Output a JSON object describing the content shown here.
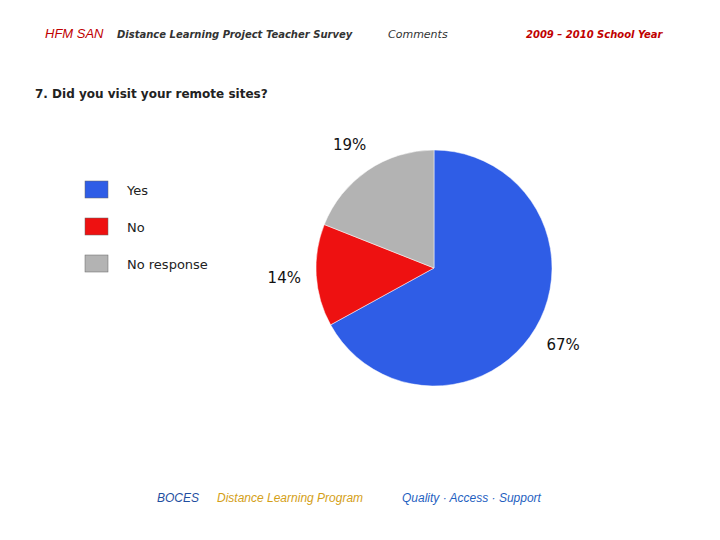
{
  "header": {
    "brand": "HFM SAN",
    "project": "Distance Learning Project  Teacher Survey",
    "section": "Comments",
    "year": "2009 – 2010 School Year"
  },
  "chart_data": {
    "type": "pie",
    "title": "7. Did you visit your remote sites?",
    "categories": [
      "Yes",
      "No",
      "No response"
    ],
    "values": [
      67,
      14,
      19
    ],
    "value_labels": [
      "67%",
      "14%",
      "19%"
    ],
    "colors": [
      "#2f5de6",
      "#ee1111",
      "#b3b3b3"
    ],
    "data_labels": true,
    "legend": "left"
  },
  "footer": {
    "org": "BOCES",
    "program": "Distance Learning Program",
    "motto": "Quality · Access · Support"
  }
}
